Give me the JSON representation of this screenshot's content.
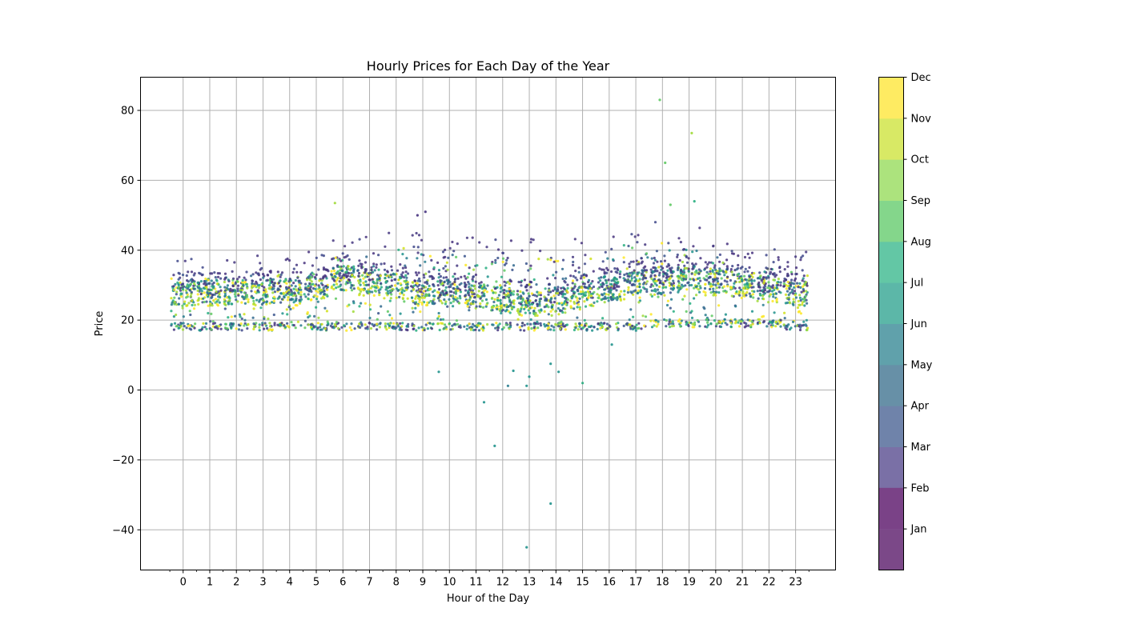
{
  "chart_data": {
    "type": "scatter",
    "title": "Hourly Prices for Each Day of the Year",
    "xlabel": "Hour of the Day",
    "ylabel": "Price",
    "xlim": [
      -1.6,
      24.5
    ],
    "ylim": [
      -51.5,
      89.5
    ],
    "grid": true,
    "x_ticks": [
      0,
      1,
      2,
      3,
      4,
      5,
      6,
      7,
      8,
      9,
      10,
      11,
      12,
      13,
      14,
      15,
      16,
      17,
      18,
      19,
      20,
      21,
      22,
      23
    ],
    "x_tick_labels": [
      "0",
      "1",
      "2",
      "3",
      "4",
      "5",
      "6",
      "7",
      "8",
      "9",
      "10",
      "11",
      "12",
      "13",
      "14",
      "15",
      "16",
      "17",
      "18",
      "19",
      "20",
      "21",
      "22",
      "23"
    ],
    "y_ticks": [
      -40,
      -20,
      0,
      20,
      40,
      60,
      80
    ],
    "y_tick_labels": [
      "−40",
      "−20",
      "0",
      "20",
      "40",
      "60",
      "80"
    ],
    "hourly_summary": {
      "hours": [
        0,
        1,
        2,
        3,
        4,
        5,
        6,
        7,
        8,
        9,
        10,
        11,
        12,
        13,
        14,
        15,
        16,
        17,
        18,
        19,
        20,
        21,
        22,
        23
      ],
      "median": [
        28,
        28,
        28,
        28,
        28,
        29,
        32,
        31,
        30,
        28,
        28,
        27,
        26,
        25,
        26,
        27,
        29,
        31,
        31,
        32,
        31,
        30,
        29,
        28
      ],
      "high": [
        36,
        36,
        36,
        36,
        36,
        37,
        41,
        42,
        44,
        43,
        42,
        42,
        41,
        41,
        41,
        41,
        42,
        45,
        46,
        45,
        41,
        39,
        38,
        37
      ],
      "low": [
        17,
        17,
        17,
        17,
        17,
        17,
        17,
        17,
        17,
        17,
        17,
        17,
        17,
        17,
        17,
        17,
        17,
        17,
        18,
        18,
        18,
        18,
        18,
        17
      ]
    },
    "outliers": [
      {
        "x": 17.9,
        "y": 83,
        "month": "Sep"
      },
      {
        "x": 19.1,
        "y": 73.5,
        "month": "Oct"
      },
      {
        "x": 18.1,
        "y": 65,
        "month": "Sep"
      },
      {
        "x": 5.7,
        "y": 53.5,
        "month": "Oct"
      },
      {
        "x": 19.2,
        "y": 54,
        "month": "Aug"
      },
      {
        "x": 18.3,
        "y": 53,
        "month": "Sep"
      },
      {
        "x": 8.8,
        "y": 50,
        "month": "Jan"
      },
      {
        "x": 9.1,
        "y": 51,
        "month": "Jan"
      },
      {
        "x": 9.6,
        "y": 5.2,
        "month": "Jul"
      },
      {
        "x": 11.3,
        "y": -3.5,
        "month": "Jul"
      },
      {
        "x": 11.7,
        "y": -16,
        "month": "Jul"
      },
      {
        "x": 12.2,
        "y": 1.2,
        "month": "Jun"
      },
      {
        "x": 12.4,
        "y": 5.5,
        "month": "Jul"
      },
      {
        "x": 12.9,
        "y": 1.2,
        "month": "Jul"
      },
      {
        "x": 12.9,
        "y": -45,
        "month": "Jul"
      },
      {
        "x": 13.0,
        "y": 3.8,
        "month": "Jul"
      },
      {
        "x": 13.8,
        "y": -32.5,
        "month": "Jul"
      },
      {
        "x": 13.8,
        "y": 7.5,
        "month": "Jul"
      },
      {
        "x": 14.1,
        "y": 5.2,
        "month": "Jul"
      },
      {
        "x": 15.0,
        "y": 2,
        "month": "Aug"
      },
      {
        "x": 16.1,
        "y": 13,
        "month": "Jul"
      }
    ],
    "colorbar": {
      "labels": [
        "Jan",
        "Feb",
        "Mar",
        "Apr",
        "May",
        "Jun",
        "Jul",
        "Aug",
        "Sep",
        "Oct",
        "Nov",
        "Dec"
      ],
      "colors": [
        "#7a4287",
        "#834d93",
        "#7a70a6",
        "#6f83aa",
        "#6790a7",
        "#60a1ab",
        "#5cb7a8",
        "#63c7a5",
        "#84d68b",
        "#ace37d",
        "#d8e965",
        "#feeb62"
      ],
      "bottom_color": "#7b4888"
    },
    "month_colors": {
      "Jan": "#46327e",
      "Feb": "#453780",
      "Mar": "#3f4889",
      "Apr": "#3a548c",
      "May": "#31688e",
      "Jun": "#287c8e",
      "Jul": "#20928c",
      "Aug": "#28ae80",
      "Sep": "#5ec962",
      "Oct": "#a0da39",
      "Nov": "#d0e11c",
      "Dec": "#fde725"
    }
  }
}
